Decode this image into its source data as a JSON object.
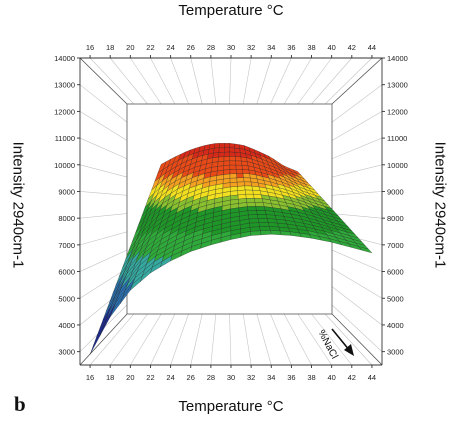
{
  "figure": {
    "panel_label": "b",
    "title_top": "Temperature °C",
    "title_bottom": "Temperature °C",
    "ylabel_left": "Intensity 2940cm-1",
    "ylabel_right": "Intensity 2940cm-1",
    "nacl_label": "%NaCl"
  },
  "colors": {
    "band_1": "#1a2aa0",
    "band_2": "#2a70b0",
    "band_3": "#35a8a0",
    "band_4": "#2faa3a",
    "band_5": "#1f9628",
    "band_6": "#88c030",
    "band_7": "#f2e020",
    "band_8": "#f4a020",
    "band_9": "#e84a18",
    "band_10": "#d82a18"
  },
  "chart_data": {
    "type": "surface",
    "title": "",
    "xlabel": "Temperature °C",
    "ylabel": "Intensity 2940cm-1",
    "zlabel": "%NaCl",
    "xlim": [
      15,
      45
    ],
    "ylim": [
      2500,
      14000
    ],
    "x_ticks": [
      16,
      18,
      20,
      22,
      24,
      26,
      28,
      30,
      32,
      34,
      36,
      38,
      40,
      42,
      44
    ],
    "y_ticks": [
      3000,
      4000,
      5000,
      6000,
      7000,
      8000,
      9000,
      10000,
      11000,
      12000,
      13000,
      14000
    ],
    "back_edge": {
      "temperature": [
        20,
        22,
        24,
        26,
        28,
        30,
        32,
        34,
        36,
        38,
        40
      ],
      "intensity": [
        10700,
        11100,
        11450,
        11700,
        11850,
        11850,
        11750,
        11450,
        11100,
        10600,
        10300
      ]
    },
    "front_edge": {
      "temperature": [
        16,
        18,
        20,
        22,
        24,
        26,
        28,
        30,
        32,
        34,
        36,
        38,
        40,
        42,
        44
      ],
      "intensity": [
        2900,
        4300,
        5300,
        5950,
        6400,
        6750,
        7000,
        7200,
        7350,
        7400,
        7350,
        7250,
        7100,
        6900,
        6700
      ]
    },
    "color_bands": [
      {
        "color": "band_1",
        "min": 2500,
        "max": 4500
      },
      {
        "color": "band_2",
        "min": 4500,
        "max": 5500
      },
      {
        "color": "band_3",
        "min": 5500,
        "max": 6500
      },
      {
        "color": "band_4",
        "min": 6500,
        "max": 7500
      },
      {
        "color": "band_5",
        "min": 7500,
        "max": 8500
      },
      {
        "color": "band_6",
        "min": 8500,
        "max": 9000
      },
      {
        "color": "band_7",
        "min": 9000,
        "max": 9500
      },
      {
        "color": "band_8",
        "min": 9500,
        "max": 10000
      },
      {
        "color": "band_9",
        "min": 10000,
        "max": 11000
      },
      {
        "color": "band_10",
        "min": 11000,
        "max": 14000
      }
    ],
    "grid": true
  }
}
